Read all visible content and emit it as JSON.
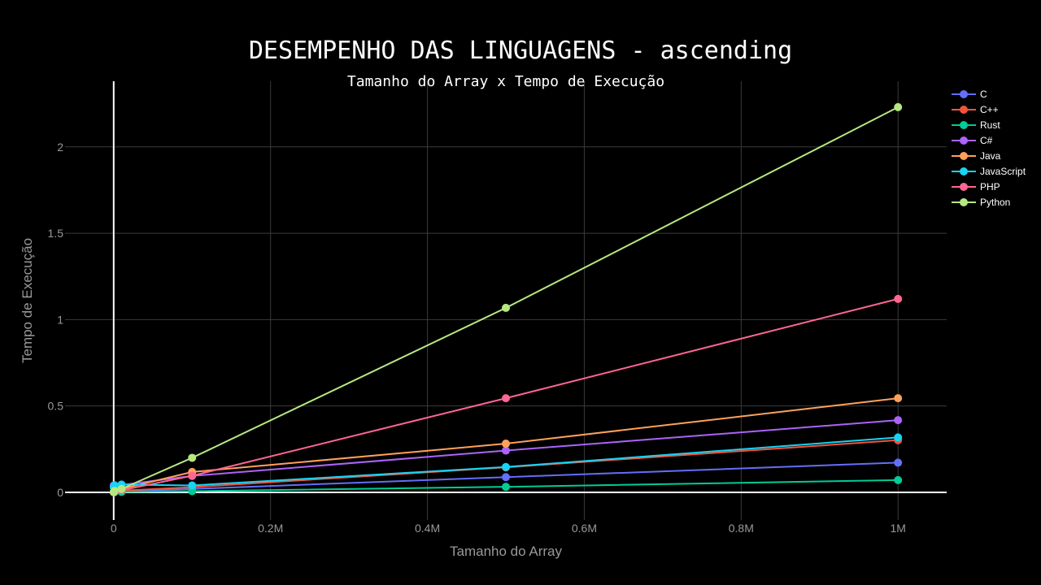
{
  "chart_data": {
    "type": "line",
    "title": "DESEMPENHO DAS LINGUAGENS - ascending",
    "subtitle": "Tamanho do Array x Tempo de Execução",
    "xlabel": "Tamanho do Array",
    "ylabel": "Tempo de Execução",
    "x": [
      100,
      1000,
      10000,
      100000,
      500000,
      1000000
    ],
    "xlim": [
      -62000,
      1062000
    ],
    "ylim": [
      -0.16,
      2.38
    ],
    "x_ticks": [
      {
        "value": 0,
        "label": "0"
      },
      {
        "value": 200000,
        "label": "0.2M"
      },
      {
        "value": 400000,
        "label": "0.4M"
      },
      {
        "value": 600000,
        "label": "0.6M"
      },
      {
        "value": 800000,
        "label": "0.8M"
      },
      {
        "value": 1000000,
        "label": "1M"
      }
    ],
    "y_ticks": [
      {
        "value": 0,
        "label": "0"
      },
      {
        "value": 0.5,
        "label": "0.5"
      },
      {
        "value": 1,
        "label": "1"
      },
      {
        "value": 1.5,
        "label": "1.5"
      },
      {
        "value": 2,
        "label": "2"
      }
    ],
    "grid": true,
    "legend_position": "top-right",
    "series": [
      {
        "name": "C",
        "color": "#636efa",
        "values": [
          0.001,
          0.003,
          0.006,
          0.02,
          0.088,
          0.172
        ]
      },
      {
        "name": "C++",
        "color": "#ef553b",
        "values": [
          0.001,
          0.004,
          0.01,
          0.03,
          0.145,
          0.302
        ]
      },
      {
        "name": "Rust",
        "color": "#00cc96",
        "values": [
          0.0005,
          0.001,
          0.003,
          0.007,
          0.032,
          0.071
        ]
      },
      {
        "name": "C#",
        "color": "#ab63fa",
        "values": [
          0.04,
          0.041,
          0.043,
          0.095,
          0.242,
          0.418
        ]
      },
      {
        "name": "Java",
        "color": "#ffa15a",
        "values": [
          0.002,
          0.01,
          0.02,
          0.118,
          0.282,
          0.545
        ]
      },
      {
        "name": "JavaScript",
        "color": "#19d3f3",
        "values": [
          0.03,
          0.04,
          0.045,
          0.04,
          0.147,
          0.318
        ]
      },
      {
        "name": "PHP",
        "color": "#ff6692",
        "values": [
          0.001,
          0.005,
          0.012,
          0.096,
          0.545,
          1.12
        ]
      },
      {
        "name": "Python",
        "color": "#b6e880",
        "values": [
          0.001,
          0.008,
          0.02,
          0.2,
          1.068,
          2.23
        ]
      }
    ]
  }
}
